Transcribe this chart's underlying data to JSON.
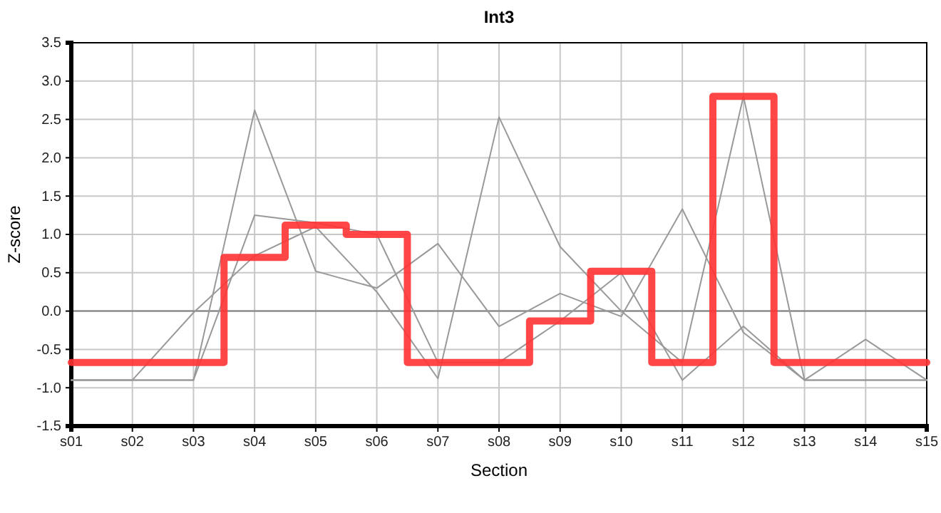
{
  "chart_data": {
    "type": "line",
    "title": "Int3",
    "xlabel": "Section",
    "ylabel": "Z-score",
    "categories": [
      "s01",
      "s02",
      "s03",
      "s04",
      "s05",
      "s06",
      "s07",
      "s08",
      "s09",
      "s10",
      "s11",
      "s12",
      "s13",
      "s14",
      "s15"
    ],
    "ylim": [
      -1.5,
      3.5
    ],
    "yticks": [
      {
        "value": -1.5,
        "label": "-1.5"
      },
      {
        "value": -1,
        "label": "-1.0"
      },
      {
        "value": -0.5,
        "label": "-0.5"
      },
      {
        "value": 0,
        "label": "0.0"
      },
      {
        "value": 0.5,
        "label": "0.5"
      },
      {
        "value": 1,
        "label": "1.0"
      },
      {
        "value": 1.5,
        "label": "1.5"
      },
      {
        "value": 2,
        "label": "2.0"
      },
      {
        "value": 2.5,
        "label": "2.5"
      },
      {
        "value": 3,
        "label": "3.0"
      },
      {
        "value": 3.5,
        "label": "3.5"
      }
    ],
    "grid": true,
    "ref_lines": [
      {
        "axis": "y",
        "value": 0,
        "color": "#808080"
      }
    ],
    "series": [
      {
        "color": "#999999",
        "values": [
          -0.9,
          -0.9,
          -0.9,
          2.62,
          0.52,
          0.3,
          0.88,
          -0.2,
          0.23,
          -0.07,
          1.33,
          -0.28,
          -0.9,
          -0.9,
          -0.9
        ]
      },
      {
        "color": "#999999",
        "values": [
          -0.9,
          -0.9,
          -0.02,
          0.72,
          1.1,
          0.25,
          -0.88,
          2.53,
          0.84,
          0.0,
          -0.67,
          2.8,
          -0.9,
          -0.9,
          -0.9
        ]
      },
      {
        "color": "#999999",
        "values": [
          -0.9,
          -0.9,
          -0.9,
          1.25,
          1.15,
          1.0,
          -0.67,
          -0.67,
          -0.13,
          0.5,
          -0.9,
          -0.2,
          -0.9,
          -0.37,
          -0.9
        ]
      },
      {
        "type": "step",
        "color": "#ff3333",
        "values": [
          -0.67,
          -0.67,
          -0.67,
          0.7,
          1.12,
          1.0,
          -0.67,
          -0.67,
          -0.13,
          0.52,
          -0.67,
          2.8,
          -0.67,
          -0.67,
          -0.67
        ]
      }
    ]
  }
}
